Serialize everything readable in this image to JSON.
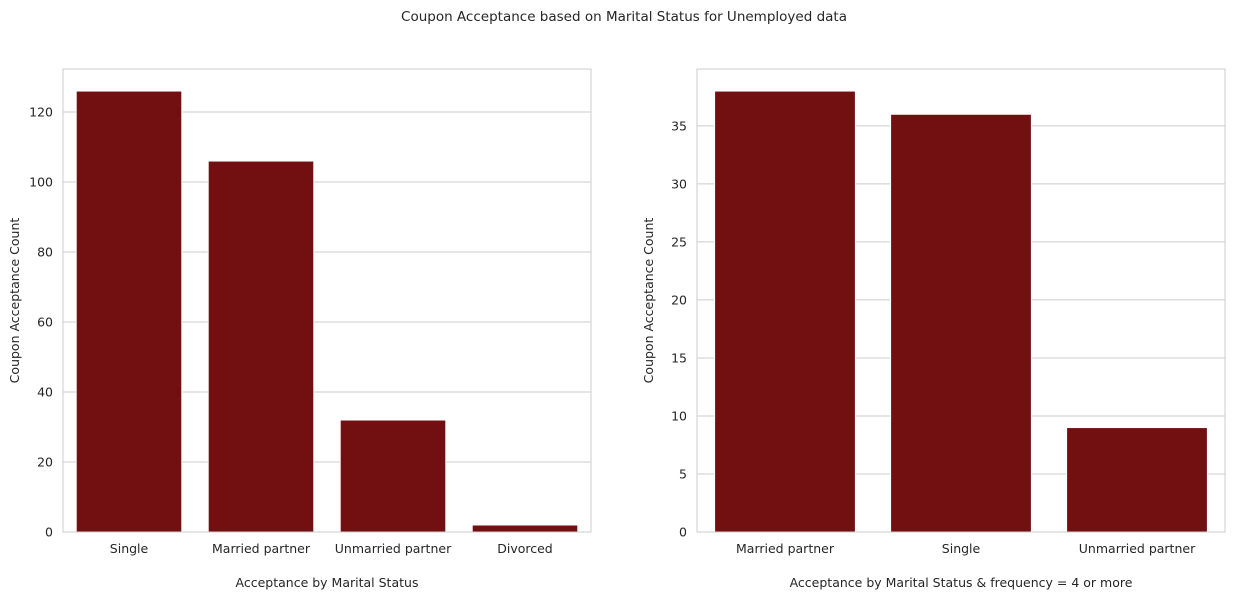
{
  "figure": {
    "suptitle": "Coupon Acceptance based on Marital Status for Unemployed data",
    "bar_color": "#721011",
    "grid_color": "#cccccc",
    "spine_color": "#cccccc",
    "background": "#ffffff"
  },
  "chart_data": [
    {
      "type": "bar",
      "title": "",
      "categories": [
        "Single",
        "Married partner",
        "Unmarried partner",
        "Divorced"
      ],
      "values": [
        126,
        106,
        32,
        2
      ],
      "xlabel": "Acceptance by Marital Status",
      "ylabel": "Coupon Acceptance Count",
      "ylim": [
        0,
        132.3
      ],
      "yticks": [
        0,
        20,
        40,
        60,
        80,
        100,
        120
      ],
      "ytick_labels": [
        "0",
        "20",
        "40",
        "60",
        "80",
        "100",
        "120"
      ],
      "grid": "y",
      "legend": "none"
    },
    {
      "type": "bar",
      "title": "",
      "categories": [
        "Married partner",
        "Single",
        "Unmarried partner"
      ],
      "values": [
        38,
        36,
        9
      ],
      "xlabel": "Acceptance by Marital Status & frequency = 4 or more",
      "ylabel": "Coupon Acceptance Count",
      "ylim": [
        0,
        39.9
      ],
      "yticks": [
        0,
        5,
        10,
        15,
        20,
        25,
        30,
        35
      ],
      "ytick_labels": [
        "0",
        "5",
        "10",
        "15",
        "20",
        "25",
        "30",
        "35"
      ],
      "grid": "y",
      "legend": "none"
    }
  ]
}
